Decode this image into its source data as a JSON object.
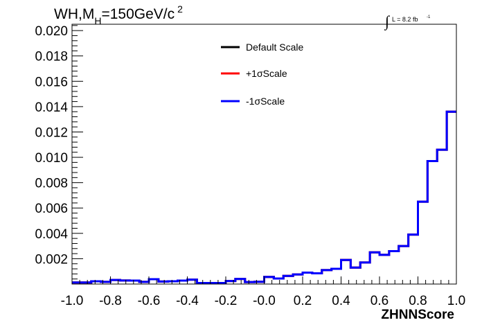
{
  "title": {
    "prefix": "WH,M",
    "subscript": "H",
    "main": "=150GeV/c",
    "superscript": "2"
  },
  "lumi": {
    "integral_symbol": "∫",
    "text": "L = 8.2 fb",
    "superscript": "-1"
  },
  "chart_data": {
    "type": "line",
    "xlabel": "ZHNNScore",
    "ylabel": "",
    "xlim": [
      -1.0,
      1.0
    ],
    "ylim": [
      0.0,
      0.0205
    ],
    "x_ticks": [
      "-1.0",
      "-0.8",
      "-0.6",
      "-0.4",
      "-0.2",
      "-0.0",
      "0.2",
      "0.4",
      "0.6",
      "0.8",
      "1.0"
    ],
    "x_tick_values": [
      -1.0,
      -0.8,
      -0.6,
      -0.4,
      -0.2,
      0.0,
      0.2,
      0.4,
      0.6,
      0.8,
      1.0
    ],
    "y_ticks": [
      "0.002",
      "0.004",
      "0.006",
      "0.008",
      "0.010",
      "0.012",
      "0.014",
      "0.016",
      "0.018",
      "0.020"
    ],
    "y_tick_values": [
      0.002,
      0.004,
      0.006,
      0.008,
      0.01,
      0.012,
      0.014,
      0.016,
      0.018,
      0.02
    ],
    "bin_edges": [
      -1.0,
      -0.95,
      -0.9,
      -0.85,
      -0.8,
      -0.75,
      -0.7,
      -0.65,
      -0.6,
      -0.55,
      -0.5,
      -0.45,
      -0.4,
      -0.35,
      -0.3,
      -0.25,
      -0.2,
      -0.15,
      -0.1,
      -0.05,
      0.0,
      0.05,
      0.1,
      0.15,
      0.2,
      0.25,
      0.3,
      0.35,
      0.4,
      0.45,
      0.5,
      0.55,
      0.6,
      0.65,
      0.7,
      0.75,
      0.8,
      0.85,
      0.9,
      0.95,
      1.0
    ],
    "series": [
      {
        "name": "Default Scale",
        "color": "#000000",
        "values": [
          0.00012,
          0.00012,
          0.00022,
          0.00017,
          0.00032,
          0.00028,
          0.00027,
          0.00017,
          0.00038,
          0.0002,
          0.00022,
          0.00027,
          0.00035,
          8e-05,
          8e-05,
          8e-05,
          0.00024,
          0.0004,
          0.00016,
          0.00018,
          0.00056,
          0.00044,
          0.00064,
          0.00076,
          0.0009,
          0.00085,
          0.0011,
          0.0012,
          0.0019,
          0.0013,
          0.0017,
          0.0025,
          0.0023,
          0.0026,
          0.003,
          0.0039,
          0.0065,
          0.0097,
          0.0106,
          0.0136
        ]
      },
      {
        "name": "+1σScale",
        "color": "#ff0000",
        "values": [
          0.00012,
          0.00012,
          0.00022,
          0.00017,
          0.00032,
          0.00028,
          0.00027,
          0.00017,
          0.00038,
          0.0002,
          0.00022,
          0.00027,
          0.00035,
          8e-05,
          8e-05,
          8e-05,
          0.00024,
          0.0004,
          0.00016,
          0.00018,
          0.00056,
          0.00044,
          0.00064,
          0.00076,
          0.0009,
          0.00085,
          0.0011,
          0.0012,
          0.0019,
          0.0013,
          0.0017,
          0.0025,
          0.0023,
          0.0026,
          0.003,
          0.0039,
          0.0065,
          0.0097,
          0.0106,
          0.0136
        ]
      },
      {
        "name": "-1σScale",
        "color": "#0000ff",
        "values": [
          0.00012,
          0.00012,
          0.00022,
          0.00017,
          0.00032,
          0.00028,
          0.00027,
          0.00017,
          0.00038,
          0.0002,
          0.00022,
          0.00027,
          0.00035,
          8e-05,
          8e-05,
          8e-05,
          0.00024,
          0.0004,
          0.00016,
          0.00018,
          0.00056,
          0.00044,
          0.00064,
          0.00076,
          0.0009,
          0.00085,
          0.0011,
          0.0012,
          0.0019,
          0.0013,
          0.0017,
          0.0025,
          0.0023,
          0.0026,
          0.003,
          0.0039,
          0.0065,
          0.0097,
          0.0106,
          0.0136
        ]
      }
    ],
    "legend_position": "top-center",
    "grid": false
  }
}
